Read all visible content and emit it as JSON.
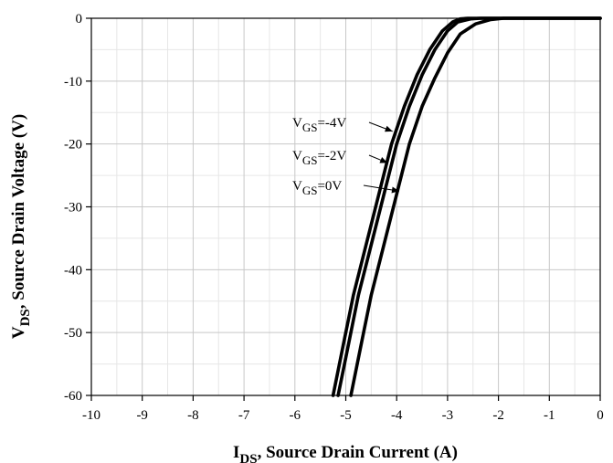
{
  "chart_data": {
    "type": "line",
    "xlabel": {
      "main": "I",
      "sub": "DS",
      "rest": ", Source Drain Current (A)"
    },
    "ylabel": {
      "main": "V",
      "sub": "DS",
      "rest": ", Source Drain Voltage (V)"
    },
    "xlim": [
      -10,
      0
    ],
    "ylim": [
      -60,
      0
    ],
    "x_ticks": [
      "-10",
      "-9",
      "-8",
      "-7",
      "-6",
      "-5",
      "-4",
      "-3",
      "-2",
      "-1",
      "0"
    ],
    "y_ticks": [
      "0",
      "-10",
      "-20",
      "-30",
      "-40",
      "-50",
      "-60"
    ],
    "grid": true,
    "series": [
      {
        "name": {
          "main": "V",
          "sub": "GS",
          "rest": "=-4V"
        },
        "x": [
          -5.25,
          -5.05,
          -4.85,
          -4.6,
          -4.35,
          -4.1,
          -3.85,
          -3.6,
          -3.35,
          -3.1,
          -2.9,
          -2.75,
          -2.6,
          -2.4,
          0
        ],
        "y": [
          -60,
          -52,
          -44,
          -36,
          -28,
          -20,
          -14,
          -9,
          -5,
          -2,
          -0.6,
          -0.1,
          0,
          0,
          0
        ]
      },
      {
        "name": {
          "main": "V",
          "sub": "GS",
          "rest": "=-2V"
        },
        "x": [
          -5.15,
          -4.95,
          -4.75,
          -4.5,
          -4.25,
          -4.0,
          -3.75,
          -3.5,
          -3.25,
          -3.0,
          -2.8,
          -2.55,
          -2.35,
          -2.1,
          0
        ],
        "y": [
          -60,
          -52,
          -44,
          -36,
          -28,
          -20,
          -14,
          -9,
          -5,
          -2,
          -0.6,
          -0.1,
          0,
          0,
          0
        ]
      },
      {
        "name": {
          "main": "V",
          "sub": "GS",
          "rest": "=0V"
        },
        "x": [
          -4.9,
          -4.7,
          -4.5,
          -4.25,
          -4.0,
          -3.75,
          -3.5,
          -3.25,
          -3.0,
          -2.75,
          -2.45,
          -2.15,
          -1.9,
          -1.6,
          0
        ],
        "y": [
          -60,
          -52,
          -44,
          -36,
          -28,
          -20,
          -14,
          -9.5,
          -5.5,
          -2.5,
          -0.9,
          -0.2,
          0,
          0,
          0
        ]
      }
    ]
  }
}
